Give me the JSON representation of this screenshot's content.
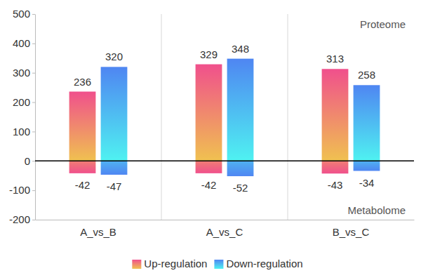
{
  "chart_data": {
    "type": "bar",
    "categories": [
      "A_vs_B",
      "A_vs_C",
      "B_vs_C"
    ],
    "series": [
      {
        "name": "Up-regulation",
        "color": "#f0508c",
        "values": [
          236,
          329,
          313
        ],
        "metabolome_values": [
          -42,
          -42,
          -43
        ]
      },
      {
        "name": "Down-regulation",
        "color": "#4f86f2",
        "values": [
          320,
          348,
          258
        ],
        "metabolome_values": [
          -47,
          -52,
          -34
        ]
      }
    ],
    "annotations": [
      "Proteome",
      "Metabolome"
    ],
    "ylim": [
      -200,
      500
    ],
    "yticks": [
      -200,
      -100,
      0,
      100,
      200,
      300,
      400,
      500
    ],
    "grid": false,
    "legend": "bottom",
    "data_labels": true
  }
}
